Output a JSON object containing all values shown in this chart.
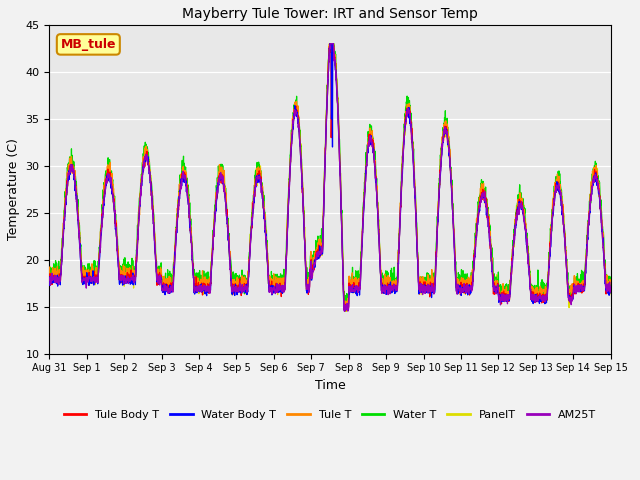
{
  "title": "Mayberry Tule Tower: IRT and Sensor Temp",
  "xlabel": "Time",
  "ylabel": "Temperature (C)",
  "ylim": [
    10,
    45
  ],
  "yticks": [
    10,
    15,
    20,
    25,
    30,
    35,
    40,
    45
  ],
  "fig_bg": "#f2f2f2",
  "plot_bg": "#e8e8e8",
  "series": {
    "Tule Body T": {
      "color": "#ff0000"
    },
    "Water Body T": {
      "color": "#0000ff"
    },
    "Tule T": {
      "color": "#ff8800"
    },
    "Water T": {
      "color": "#00dd00"
    },
    "PanelT": {
      "color": "#dddd00"
    },
    "AM25T": {
      "color": "#9900bb"
    }
  },
  "watermark": "MB_tule",
  "watermark_color": "#cc0000",
  "watermark_bg": "#ffff99",
  "watermark_border": "#cc8800"
}
